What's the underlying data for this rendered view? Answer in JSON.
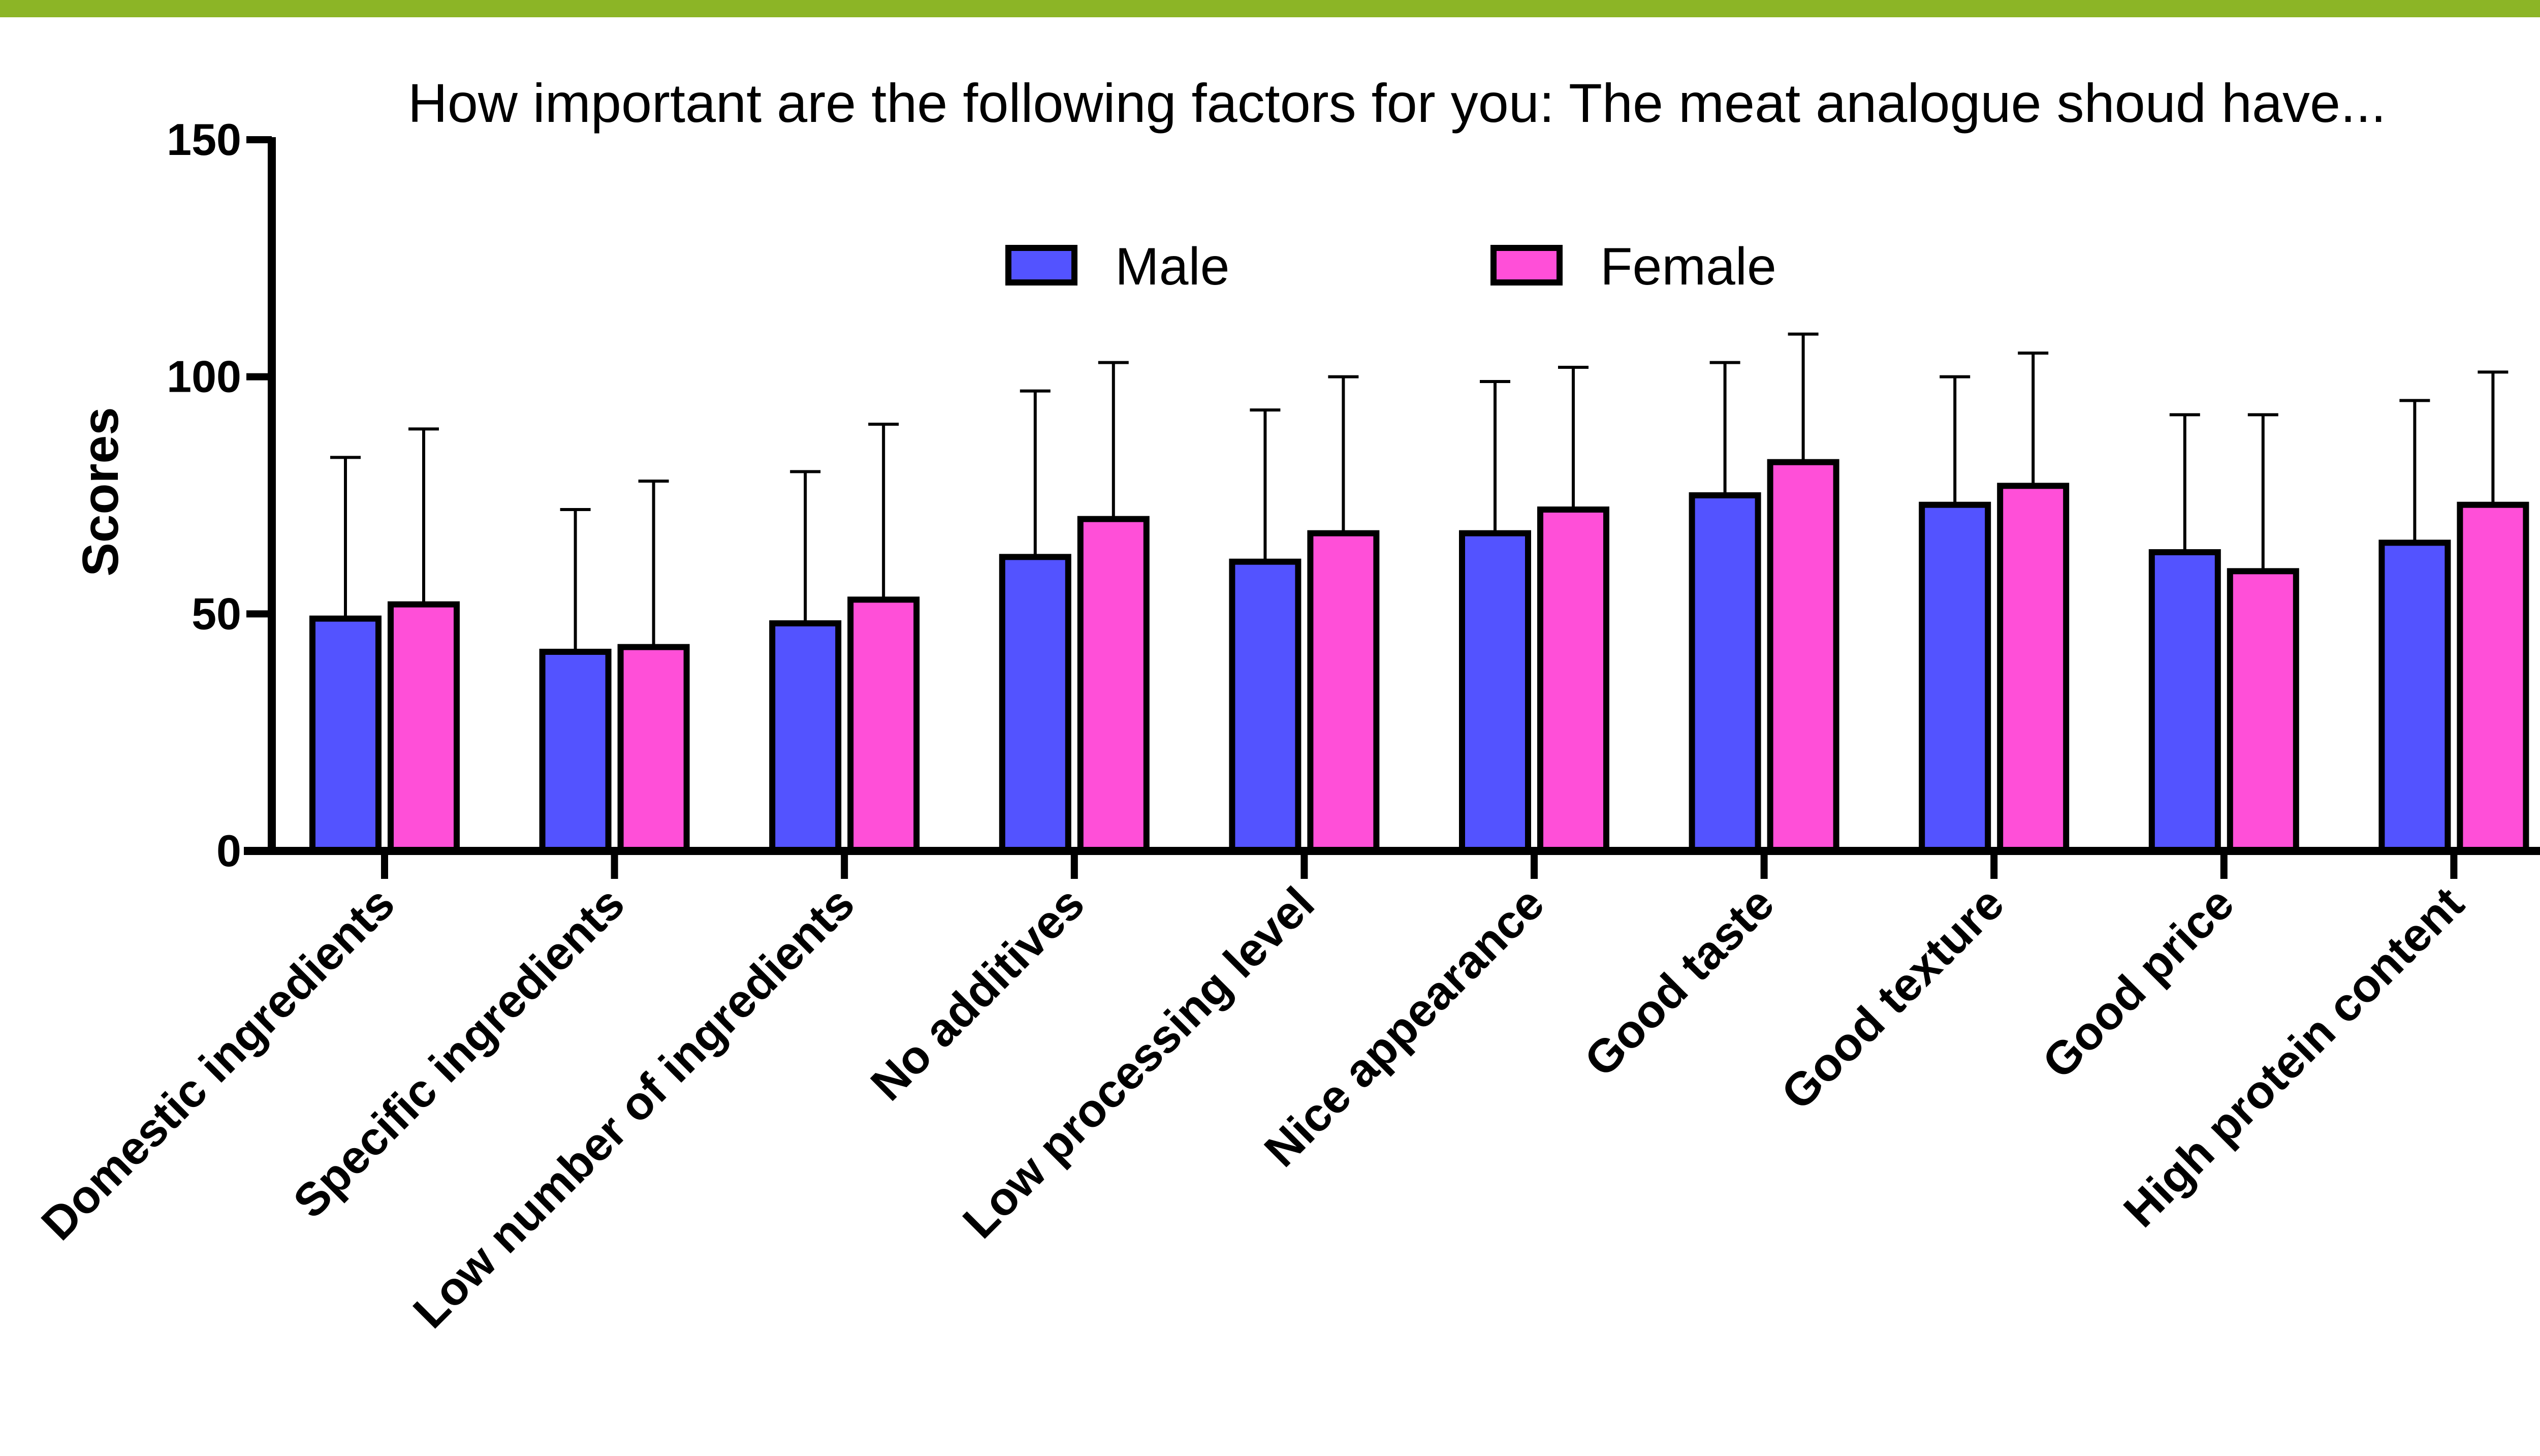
{
  "chart_data": {
    "type": "bar",
    "title": "How important are the following factors for you: The meat analogue shoud have...",
    "xlabel": "",
    "ylabel": "Scores",
    "ylim": [
      0,
      150
    ],
    "yticks": [
      "0",
      "50",
      "100",
      "150"
    ],
    "grid": false,
    "legend_position": "top-center",
    "categories": [
      "Domestic ingredients",
      "Specific ingredients",
      "Low number of ingredients",
      "No additives",
      "Low processing level",
      "Nice appearance",
      "Good taste",
      "Good texture",
      "Good price",
      "High protein content"
    ],
    "series": [
      {
        "name": "Male",
        "color": "#5353ff",
        "values": [
          49,
          42,
          48,
          62,
          61,
          67,
          75,
          73,
          63,
          65
        ],
        "error_upper": [
          83,
          72,
          80,
          97,
          93,
          99,
          103,
          100,
          92,
          95
        ]
      },
      {
        "name": "Female",
        "color": "#ff4fd8",
        "values": [
          52,
          43,
          53,
          70,
          67,
          72,
          82,
          77,
          59,
          73
        ],
        "error_upper": [
          89,
          78,
          90,
          103,
          100,
          102,
          109,
          105,
          92,
          101
        ]
      }
    ],
    "accent_bar_color": "#8cb526"
  }
}
